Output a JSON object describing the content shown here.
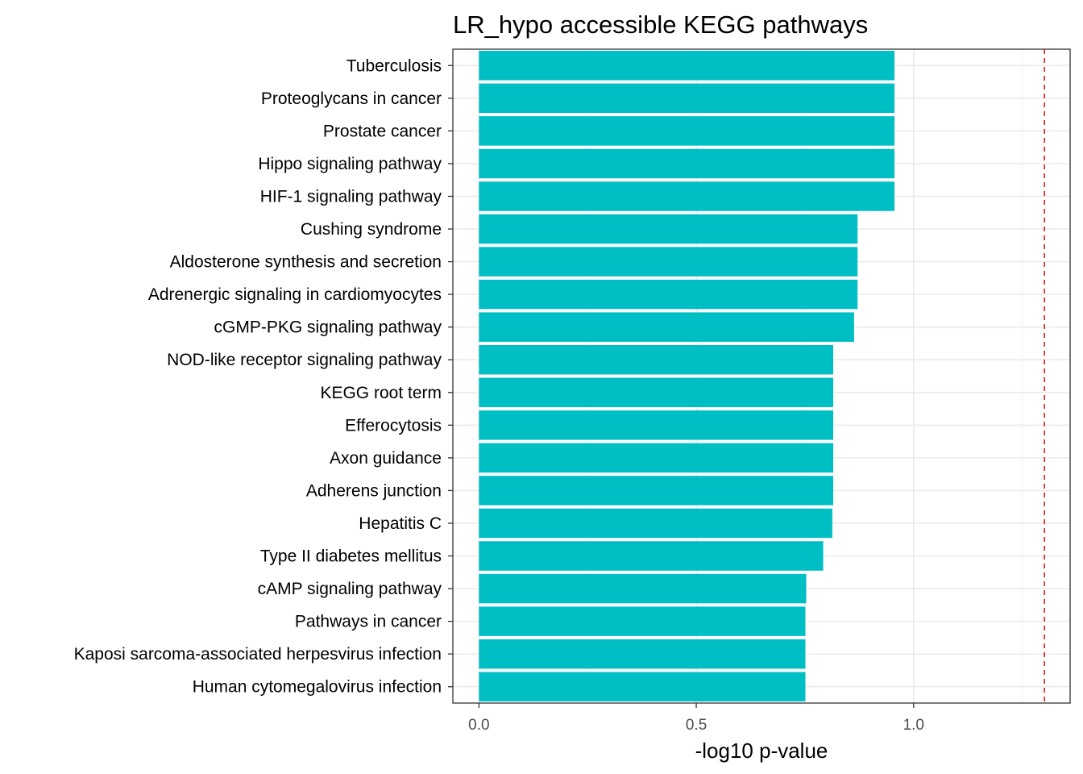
{
  "chart_data": {
    "type": "bar",
    "orientation": "horizontal",
    "title": "LR_hypo accessible KEGG pathways",
    "xlabel": "-log10 p-value",
    "ylabel": "",
    "xlim": [
      -0.06,
      1.36
    ],
    "xticks": [
      0.0,
      0.5,
      1.0
    ],
    "xtick_labels": [
      "0.0",
      "0.5",
      "1.0"
    ],
    "grid": true,
    "bar_color": "#00BFC4",
    "threshold": {
      "value": 1.301,
      "color": "#E41A1C",
      "style": "dashed"
    },
    "categories": [
      "Tuberculosis",
      "Proteoglycans in cancer",
      "Prostate cancer",
      "Hippo signaling pathway",
      "HIF-1 signaling pathway",
      "Cushing syndrome",
      "Aldosterone synthesis and secretion",
      "Adrenergic signaling in cardiomyocytes",
      "cGMP-PKG signaling pathway",
      "NOD-like receptor signaling pathway",
      "KEGG root term",
      "Efferocytosis",
      "Axon guidance",
      "Adherens junction",
      "Hepatitis C",
      "Type II diabetes mellitus",
      "cAMP signaling pathway",
      "Pathways in cancer",
      "Kaposi sarcoma-associated herpesvirus infection",
      "Human cytomegalovirus infection"
    ],
    "values": [
      0.956,
      0.956,
      0.956,
      0.956,
      0.956,
      0.871,
      0.871,
      0.871,
      0.863,
      0.815,
      0.815,
      0.815,
      0.815,
      0.815,
      0.813,
      0.792,
      0.753,
      0.751,
      0.751,
      0.751
    ]
  }
}
